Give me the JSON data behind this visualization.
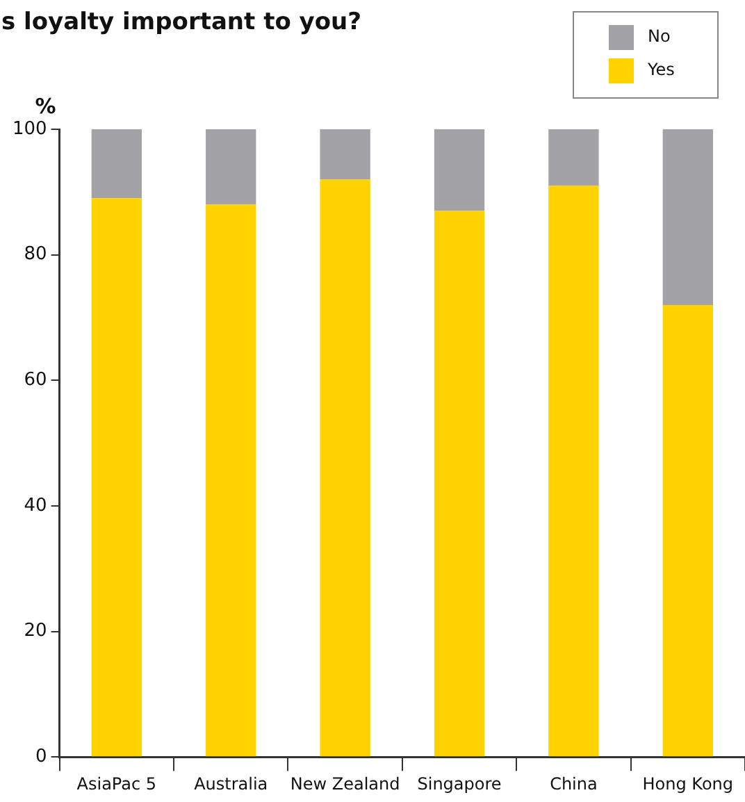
{
  "chart_data": {
    "type": "bar",
    "title": "s loyalty important to you?",
    "ylabel": "%",
    "categories": [
      "AsiaPac 5",
      "Australia",
      "New Zealand",
      "Singapore",
      "China",
      "Hong Kong"
    ],
    "stacked": true,
    "series": [
      {
        "name": "Yes",
        "color": "#ffd200",
        "values": [
          89,
          88,
          92,
          87,
          91,
          72
        ]
      },
      {
        "name": "No",
        "color": "#a3a2a7",
        "values": [
          11,
          12,
          8,
          13,
          9,
          28
        ]
      }
    ],
    "ylim": [
      0,
      100
    ],
    "yticks": [
      0,
      20,
      40,
      60,
      80,
      100
    ],
    "grid": false,
    "legend": "top right"
  }
}
